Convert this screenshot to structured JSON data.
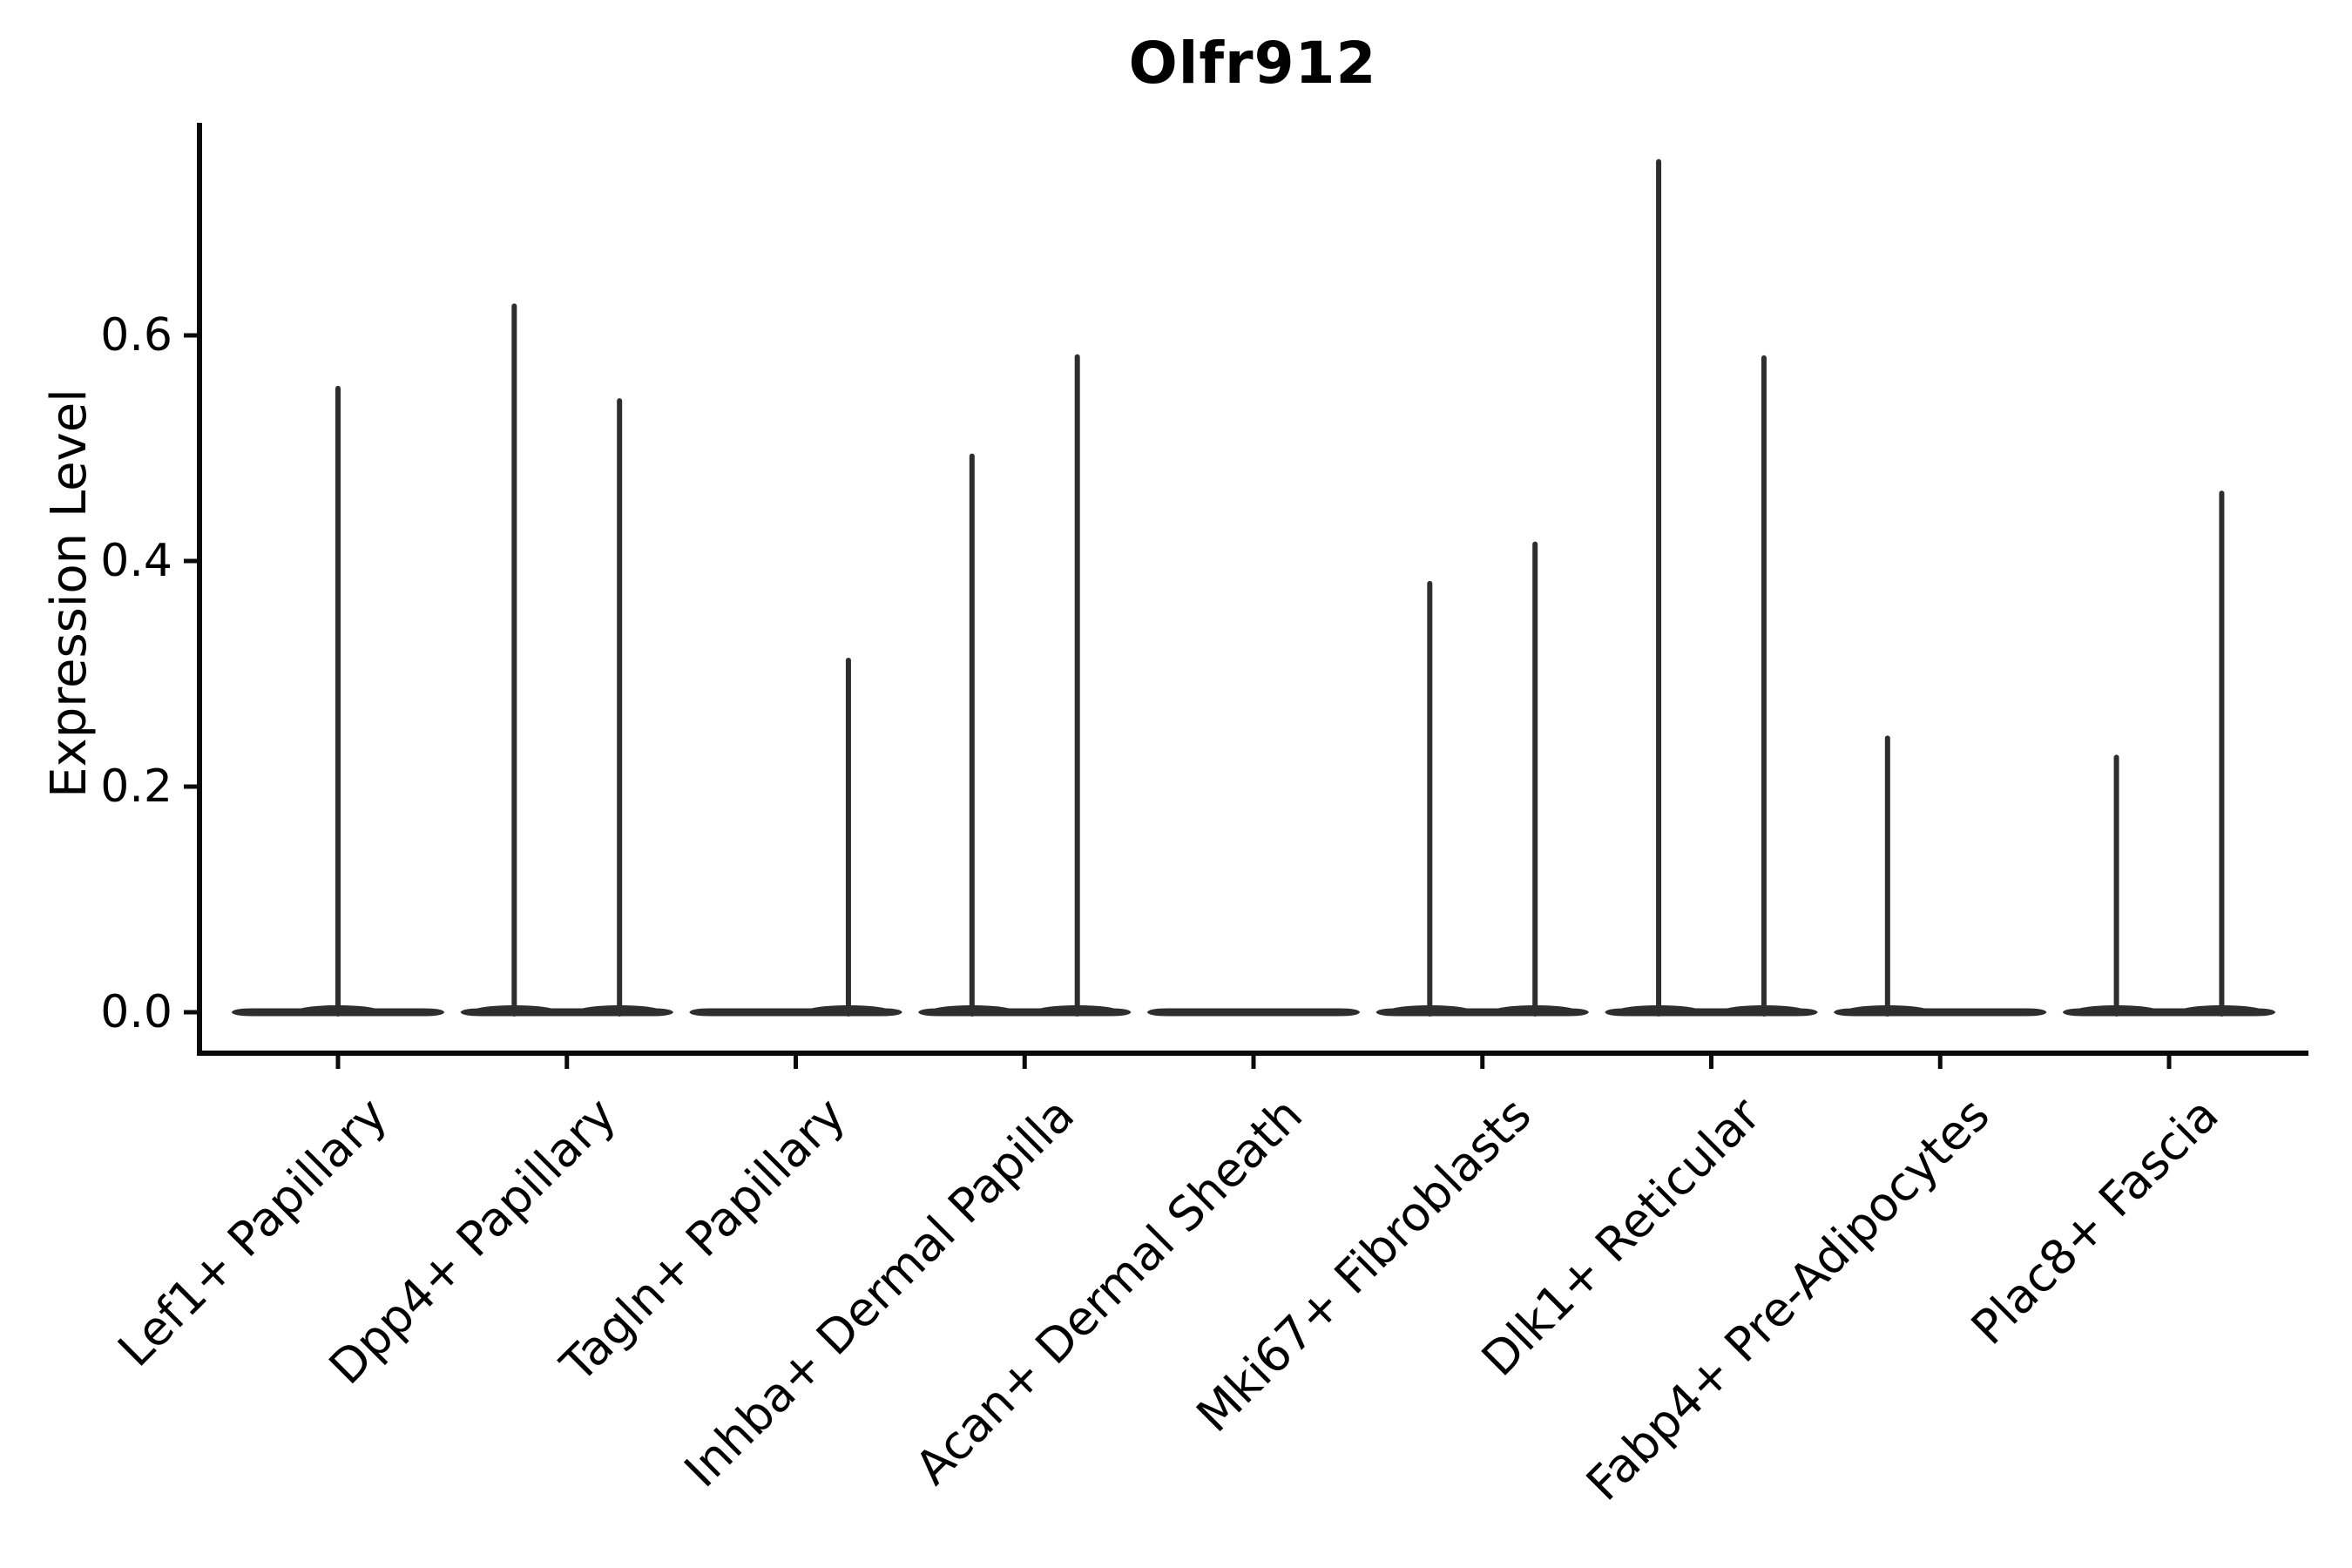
{
  "chart_data": {
    "type": "violin",
    "title": "Olfr912",
    "ylabel": "Expression Level",
    "xlabel": "",
    "yticks": [
      0.0,
      0.2,
      0.4,
      0.6
    ],
    "ytick_labels": [
      "0.0",
      "0.2",
      "0.4",
      "0.6"
    ],
    "ylim": [
      -0.036,
      0.789
    ],
    "grid": false,
    "legend_position": "none",
    "x_label_rotation_deg": 45,
    "violin_color": "#2e2e2e",
    "axis_color": "#0a0a0a",
    "background_color": "#ffffff",
    "categories": [
      "Lef1+ Papillary",
      "Dpp4+ Papillary",
      "Tagln+ Papillary",
      "Inhba+ Dermal Papilla",
      "Acan+ Dermal Sheath",
      "Mki67+ Fibroblasts",
      "Dlk1+ Reticular",
      "Fabp4+ Pre-Adipocytes",
      "Plac8+ Fascia"
    ],
    "violins": [
      {
        "category": "Lef1+ Papillary",
        "zero_body": true,
        "spikes": [
          {
            "x_offset": 0.0,
            "peak": 0.553
          }
        ]
      },
      {
        "category": "Dpp4+ Papillary",
        "zero_body": true,
        "spikes": [
          {
            "x_offset": -0.23,
            "peak": 0.626
          },
          {
            "x_offset": 0.23,
            "peak": 0.542
          }
        ]
      },
      {
        "category": "Tagln+ Papillary",
        "zero_body": true,
        "spikes": [
          {
            "x_offset": 0.23,
            "peak": 0.312
          }
        ]
      },
      {
        "category": "Inhba+ Dermal Papilla",
        "zero_body": true,
        "spikes": [
          {
            "x_offset": -0.23,
            "peak": 0.493
          },
          {
            "x_offset": 0.23,
            "peak": 0.581
          }
        ]
      },
      {
        "category": "Acan+ Dermal Sheath",
        "zero_body": true,
        "spikes": []
      },
      {
        "category": "Mki67+ Fibroblasts",
        "zero_body": true,
        "spikes": [
          {
            "x_offset": -0.23,
            "peak": 0.38
          },
          {
            "x_offset": 0.23,
            "peak": 0.415
          }
        ]
      },
      {
        "category": "Dlk1+ Reticular",
        "zero_body": true,
        "spikes": [
          {
            "x_offset": -0.23,
            "peak": 0.754
          },
          {
            "x_offset": 0.23,
            "peak": 0.58
          }
        ]
      },
      {
        "category": "Fabp4+ Pre-Adipocytes",
        "zero_body": true,
        "spikes": [
          {
            "x_offset": -0.23,
            "peak": 0.243
          }
        ]
      },
      {
        "category": "Plac8+ Fascia",
        "zero_body": true,
        "spikes": [
          {
            "x_offset": -0.23,
            "peak": 0.226
          },
          {
            "x_offset": 0.23,
            "peak": 0.46
          }
        ]
      }
    ]
  }
}
